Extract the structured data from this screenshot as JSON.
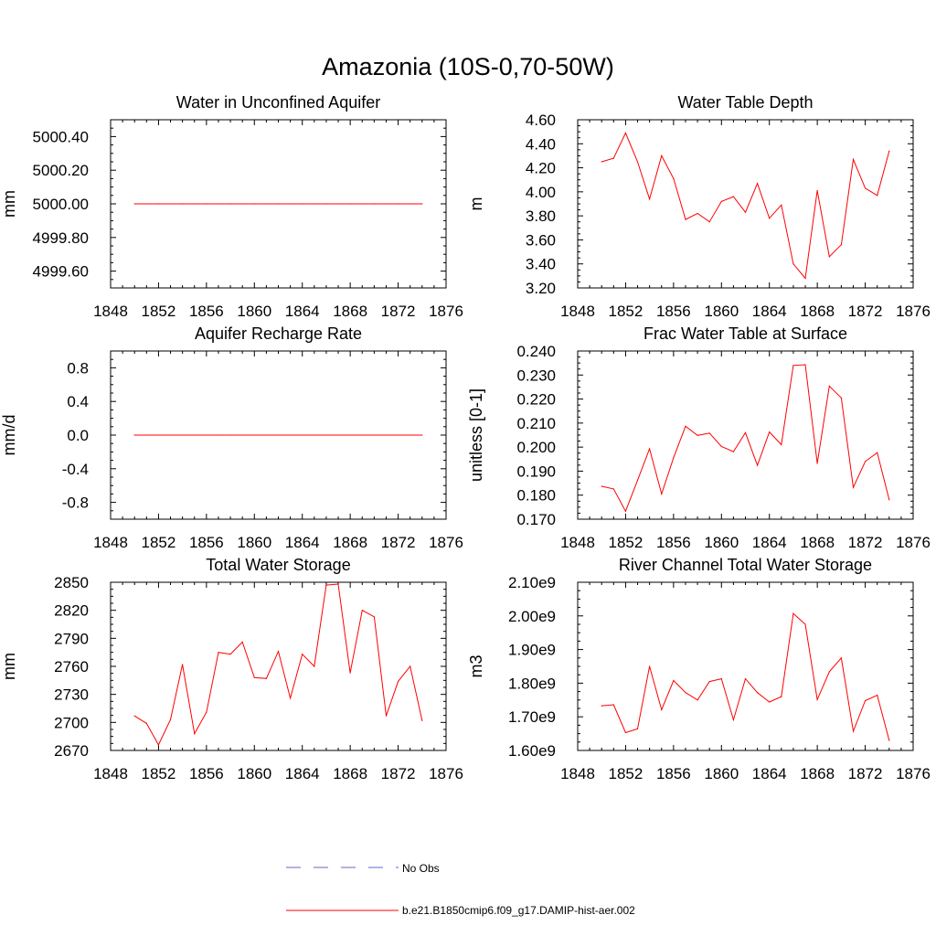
{
  "title": "Amazonia (10S-0,70-50W)",
  "colors": {
    "series": "#ff0000",
    "obs": "#6666cc",
    "frame": "#000000"
  },
  "legend": {
    "obs_label": "No Obs",
    "model_label": "b.e21.B1850cmip6.f09_g17.DAMIP-hist-aer.002"
  },
  "chart_data": [
    {
      "type": "line",
      "title": "Water in Unconfined Aquifer",
      "xlabel": "",
      "ylabel": "mm",
      "xlim": [
        1848,
        1876
      ],
      "ylim": [
        4999.5,
        5000.5
      ],
      "xticks": [
        1848,
        1852,
        1856,
        1860,
        1864,
        1868,
        1872,
        1876
      ],
      "yticks": [
        4999.6,
        4999.8,
        5000.0,
        5000.2,
        5000.4
      ],
      "ytick_labels": [
        "4999.60",
        "4999.80",
        "5000.00",
        "5000.20",
        "5000.40"
      ],
      "x": [
        1850,
        1851,
        1852,
        1853,
        1854,
        1855,
        1856,
        1857,
        1858,
        1859,
        1860,
        1861,
        1862,
        1863,
        1864,
        1865,
        1866,
        1867,
        1868,
        1869,
        1870,
        1871,
        1872,
        1873,
        1874
      ],
      "series": [
        {
          "name": "b.e21.B1850cmip6.f09_g17.DAMIP-hist-aer.002",
          "values": [
            5000,
            5000,
            5000,
            5000,
            5000,
            5000,
            5000,
            5000,
            5000,
            5000,
            5000,
            5000,
            5000,
            5000,
            5000,
            5000,
            5000,
            5000,
            5000,
            5000,
            5000,
            5000,
            5000,
            5000,
            5000
          ]
        }
      ]
    },
    {
      "type": "line",
      "title": "Water Table Depth",
      "xlabel": "",
      "ylabel": "m",
      "xlim": [
        1848,
        1876
      ],
      "ylim": [
        3.2,
        4.6
      ],
      "xticks": [
        1848,
        1852,
        1856,
        1860,
        1864,
        1868,
        1872,
        1876
      ],
      "yticks": [
        3.2,
        3.4,
        3.6,
        3.8,
        4.0,
        4.2,
        4.4,
        4.6
      ],
      "ytick_labels": [
        "3.20",
        "3.40",
        "3.60",
        "3.80",
        "4.00",
        "4.20",
        "4.40",
        "4.60"
      ],
      "x": [
        1850,
        1851,
        1852,
        1853,
        1854,
        1855,
        1856,
        1857,
        1858,
        1859,
        1860,
        1861,
        1862,
        1863,
        1864,
        1865,
        1866,
        1867,
        1868,
        1869,
        1870,
        1871,
        1872,
        1873,
        1874
      ],
      "series": [
        {
          "name": "b.e21.B1850cmip6.f09_g17.DAMIP-hist-aer.002",
          "values": [
            4.25,
            4.28,
            4.49,
            4.25,
            3.94,
            4.3,
            4.11,
            3.77,
            3.82,
            3.75,
            3.92,
            3.96,
            3.83,
            4.07,
            3.78,
            3.89,
            3.4,
            3.28,
            4.01,
            3.46,
            3.56,
            4.27,
            4.03,
            3.97,
            4.34
          ]
        }
      ]
    },
    {
      "type": "line",
      "title": "Aquifer Recharge Rate",
      "xlabel": "",
      "ylabel": "mm/d",
      "xlim": [
        1848,
        1876
      ],
      "ylim": [
        -1.0,
        1.0
      ],
      "xticks": [
        1848,
        1852,
        1856,
        1860,
        1864,
        1868,
        1872,
        1876
      ],
      "yticks": [
        -0.8,
        -0.4,
        0.0,
        0.4,
        0.8
      ],
      "ytick_labels": [
        "-0.8",
        "-0.4",
        "0.0",
        "0.4",
        "0.8"
      ],
      "x": [
        1850,
        1851,
        1852,
        1853,
        1854,
        1855,
        1856,
        1857,
        1858,
        1859,
        1860,
        1861,
        1862,
        1863,
        1864,
        1865,
        1866,
        1867,
        1868,
        1869,
        1870,
        1871,
        1872,
        1873,
        1874
      ],
      "series": [
        {
          "name": "b.e21.B1850cmip6.f09_g17.DAMIP-hist-aer.002",
          "values": [
            0,
            0,
            0,
            0,
            0,
            0,
            0,
            0,
            0,
            0,
            0,
            0,
            0,
            0,
            0,
            0,
            0,
            0,
            0,
            0,
            0,
            0,
            0,
            0,
            0
          ]
        }
      ]
    },
    {
      "type": "line",
      "title": "Frac Water Table at Surface",
      "xlabel": "",
      "ylabel": "unitless [0-1]",
      "xlim": [
        1848,
        1876
      ],
      "ylim": [
        0.17,
        0.24
      ],
      "xticks": [
        1848,
        1852,
        1856,
        1860,
        1864,
        1868,
        1872,
        1876
      ],
      "yticks": [
        0.17,
        0.18,
        0.19,
        0.2,
        0.21,
        0.22,
        0.23,
        0.24
      ],
      "ytick_labels": [
        "0.170",
        "0.180",
        "0.190",
        "0.200",
        "0.210",
        "0.220",
        "0.230",
        "0.240"
      ],
      "x": [
        1850,
        1851,
        1852,
        1853,
        1854,
        1855,
        1856,
        1857,
        1858,
        1859,
        1860,
        1861,
        1862,
        1863,
        1864,
        1865,
        1866,
        1867,
        1868,
        1869,
        1870,
        1871,
        1872,
        1873,
        1874
      ],
      "series": [
        {
          "name": "b.e21.B1850cmip6.f09_g17.DAMIP-hist-aer.002",
          "values": [
            0.1837,
            0.1826,
            0.1733,
            0.1862,
            0.1993,
            0.1805,
            0.1956,
            0.2087,
            0.2049,
            0.2058,
            0.2003,
            0.1981,
            0.206,
            0.1924,
            0.2063,
            0.201,
            0.234,
            0.2343,
            0.1932,
            0.2254,
            0.2205,
            0.1832,
            0.194,
            0.1977,
            0.1781
          ]
        }
      ]
    },
    {
      "type": "line",
      "title": "Total Water Storage",
      "xlabel": "",
      "ylabel": "mm",
      "xlim": [
        1848,
        1876
      ],
      "ylim": [
        2670,
        2850
      ],
      "xticks": [
        1848,
        1852,
        1856,
        1860,
        1864,
        1868,
        1872,
        1876
      ],
      "yticks": [
        2670,
        2700,
        2730,
        2760,
        2790,
        2820,
        2850
      ],
      "ytick_labels": [
        "2670",
        "2700",
        "2730",
        "2760",
        "2790",
        "2820",
        "2850"
      ],
      "x": [
        1850,
        1851,
        1852,
        1853,
        1854,
        1855,
        1856,
        1857,
        1858,
        1859,
        1860,
        1861,
        1862,
        1863,
        1864,
        1865,
        1866,
        1867,
        1868,
        1869,
        1870,
        1871,
        1872,
        1873,
        1874
      ],
      "series": [
        {
          "name": "b.e21.B1850cmip6.f09_g17.DAMIP-hist-aer.002",
          "values": [
            2707,
            2699,
            2676,
            2703,
            2762,
            2688,
            2711,
            2775,
            2773,
            2786,
            2748,
            2747,
            2776,
            2726,
            2773,
            2760,
            2847,
            2848,
            2753,
            2820,
            2813,
            2707,
            2744,
            2760,
            2702
          ]
        }
      ]
    },
    {
      "type": "line",
      "title": "River Channel Total Water Storage",
      "xlabel": "",
      "ylabel": "m3",
      "xlim": [
        1848,
        1876
      ],
      "ylim": [
        1.6,
        2.1
      ],
      "xticks": [
        1848,
        1852,
        1856,
        1860,
        1864,
        1868,
        1872,
        1876
      ],
      "yticks": [
        1.6,
        1.7,
        1.8,
        1.9,
        2.0,
        2.1
      ],
      "ytick_labels": [
        "1.60e9",
        "1.70e9",
        "1.80e9",
        "1.90e9",
        "2.00e9",
        "2.10e9"
      ],
      "x": [
        1850,
        1851,
        1852,
        1853,
        1854,
        1855,
        1856,
        1857,
        1858,
        1859,
        1860,
        1861,
        1862,
        1863,
        1864,
        1865,
        1866,
        1867,
        1868,
        1869,
        1870,
        1871,
        1872,
        1873,
        1874
      ],
      "series": [
        {
          "name": "b.e21.B1850cmip6.f09_g17.DAMIP-hist-aer.002",
          "values": [
            1.733,
            1.736,
            1.653,
            1.664,
            1.85,
            1.721,
            1.808,
            1.772,
            1.75,
            1.805,
            1.813,
            1.691,
            1.813,
            1.772,
            1.744,
            1.76,
            2.007,
            1.975,
            1.751,
            1.834,
            1.875,
            1.657,
            1.748,
            1.764,
            1.63
          ]
        }
      ]
    }
  ]
}
